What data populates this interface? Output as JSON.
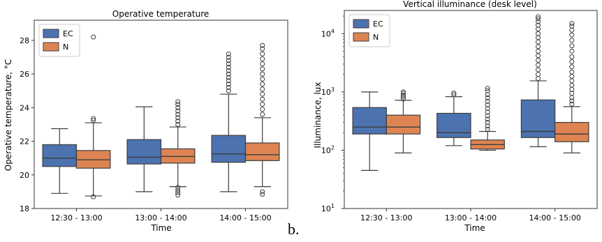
{
  "figure": {
    "caption": "b."
  },
  "colors": {
    "EC": "#4c72b0",
    "N": "#dd8452",
    "outline": "#3d3d3d"
  },
  "chart_data": [
    {
      "type": "box",
      "title": "Operative temperature",
      "xlabel": "Time",
      "ylabel": "Operative temperature, °C",
      "yscale": "linear",
      "ylim": [
        18,
        29.2
      ],
      "yticks": [
        "18",
        "20",
        "22",
        "24",
        "26",
        "28"
      ],
      "ytick_values": [
        18,
        20,
        22,
        24,
        26,
        28
      ],
      "categories": [
        "12:30 - 13:00",
        "13:00 - 14:00",
        "14:00 - 15:00"
      ],
      "legend": {
        "position": "top-left",
        "entries": [
          "EC",
          "N"
        ]
      },
      "series": [
        {
          "name": "EC",
          "color": "#4c72b0",
          "boxes": [
            {
              "whislo": 18.9,
              "q1": 20.5,
              "med": 21.0,
              "q3": 21.8,
              "whishi": 22.75,
              "fliers": []
            },
            {
              "whislo": 19.0,
              "q1": 20.65,
              "med": 21.05,
              "q3": 22.1,
              "whishi": 24.05,
              "fliers": []
            },
            {
              "whislo": 19.0,
              "q1": 20.75,
              "med": 21.25,
              "q3": 22.35,
              "whishi": 24.8,
              "fliers": [
                25.0,
                25.2,
                25.4,
                25.6,
                25.8,
                26.0,
                26.2,
                26.4,
                26.6,
                26.8,
                27.0,
                27.2
              ]
            }
          ]
        },
        {
          "name": "N",
          "color": "#dd8452",
          "boxes": [
            {
              "whislo": 18.75,
              "q1": 20.4,
              "med": 20.9,
              "q3": 21.45,
              "whishi": 23.1,
              "fliers": [
                18.7,
                23.25,
                23.35,
                28.2
              ]
            },
            {
              "whislo": 19.3,
              "q1": 20.7,
              "med": 21.1,
              "q3": 21.55,
              "whishi": 22.85,
              "fliers": [
                18.8,
                18.95,
                19.1,
                19.25,
                23.0,
                23.2,
                23.4,
                23.6,
                23.8,
                24.0,
                24.2,
                24.35
              ]
            },
            {
              "whislo": 19.3,
              "q1": 20.85,
              "med": 21.2,
              "q3": 21.9,
              "whishi": 23.4,
              "fliers": [
                18.85,
                19.0,
                23.6,
                23.9,
                24.2,
                24.5,
                24.8,
                25.1,
                25.4,
                25.7,
                26.0,
                26.3,
                26.6,
                26.9,
                27.2,
                27.5,
                27.7
              ]
            }
          ]
        }
      ]
    },
    {
      "type": "box",
      "title": "Vertical illuminance (desk level)",
      "xlabel": "Time",
      "ylabel": "Illuminance, lux",
      "yscale": "log",
      "ylim": [
        10,
        25000
      ],
      "yticks": [
        "10",
        "10",
        "10",
        "10"
      ],
      "ytick_sup": [
        "1",
        "2",
        "3",
        "4"
      ],
      "ytick_values": [
        10,
        100,
        1000,
        10000
      ],
      "categories": [
        "12:30 - 13:00",
        "13:00 - 14:00",
        "14:00 - 15:00"
      ],
      "legend": {
        "position": "top-left",
        "entries": [
          "EC",
          "N"
        ]
      },
      "series": [
        {
          "name": "EC",
          "color": "#4c72b0",
          "boxes": [
            {
              "whislo": 45,
              "q1": 190,
              "med": 250,
              "q3": 540,
              "whishi": 1000,
              "fliers": []
            },
            {
              "whislo": 120,
              "q1": 165,
              "med": 200,
              "q3": 430,
              "whishi": 830,
              "fliers": [
                900,
                960
              ]
            },
            {
              "whislo": 115,
              "q1": 165,
              "med": 210,
              "q3": 730,
              "whishi": 1550,
              "fliers": [
                1700,
                2000,
                2400,
                2900,
                3500,
                4200,
                5000,
                6000,
                7200,
                8600,
                10000,
                12000,
                14000,
                16000,
                18000,
                19500
              ]
            }
          ]
        },
        {
          "name": "N",
          "color": "#dd8452",
          "boxes": [
            {
              "whislo": 90,
              "q1": 190,
              "med": 250,
              "q3": 400,
              "whishi": 720,
              "fliers": [
                760,
                820,
                880,
                950,
                1000
              ]
            },
            {
              "whislo": 100,
              "q1": 105,
              "med": 125,
              "q3": 150,
              "whishi": 210,
              "fliers": [
                230,
                260,
                300,
                340,
                390,
                450,
                520,
                600,
                690,
                790,
                900,
                1050,
                1150
              ]
            },
            {
              "whislo": 90,
              "q1": 140,
              "med": 190,
              "q3": 300,
              "whishi": 560,
              "fliers": [
                620,
                700,
                800,
                950,
                1100,
                1300,
                1550,
                1850,
                2200,
                2700,
                3300,
                4000,
                5000,
                6200,
                7700,
                9500,
                11500,
                13500,
                15000
              ]
            }
          ]
        }
      ]
    }
  ]
}
